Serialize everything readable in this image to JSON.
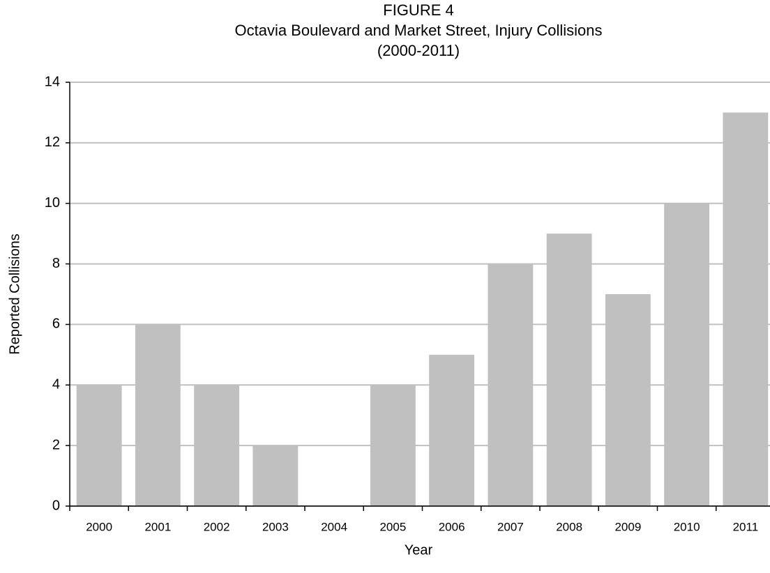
{
  "chart_data": {
    "type": "bar",
    "title": [
      "FIGURE 4",
      "Octavia Boulevard and Market Street, Injury Collisions",
      "(2000-2011)"
    ],
    "x_label": "Year",
    "y_label": "Reported Collisions",
    "categories": [
      "2000",
      "2001",
      "2002",
      "2003",
      "2004",
      "2005",
      "2006",
      "2007",
      "2008",
      "2009",
      "2010",
      "2011"
    ],
    "values": [
      4,
      6,
      4,
      2,
      0,
      4,
      5,
      8,
      9,
      7,
      10,
      13
    ],
    "color": "#c0c0c0",
    "ylim": [
      0,
      14
    ],
    "yticks": [
      0,
      2,
      4,
      6,
      8,
      10,
      12,
      14
    ],
    "grid": true
  }
}
